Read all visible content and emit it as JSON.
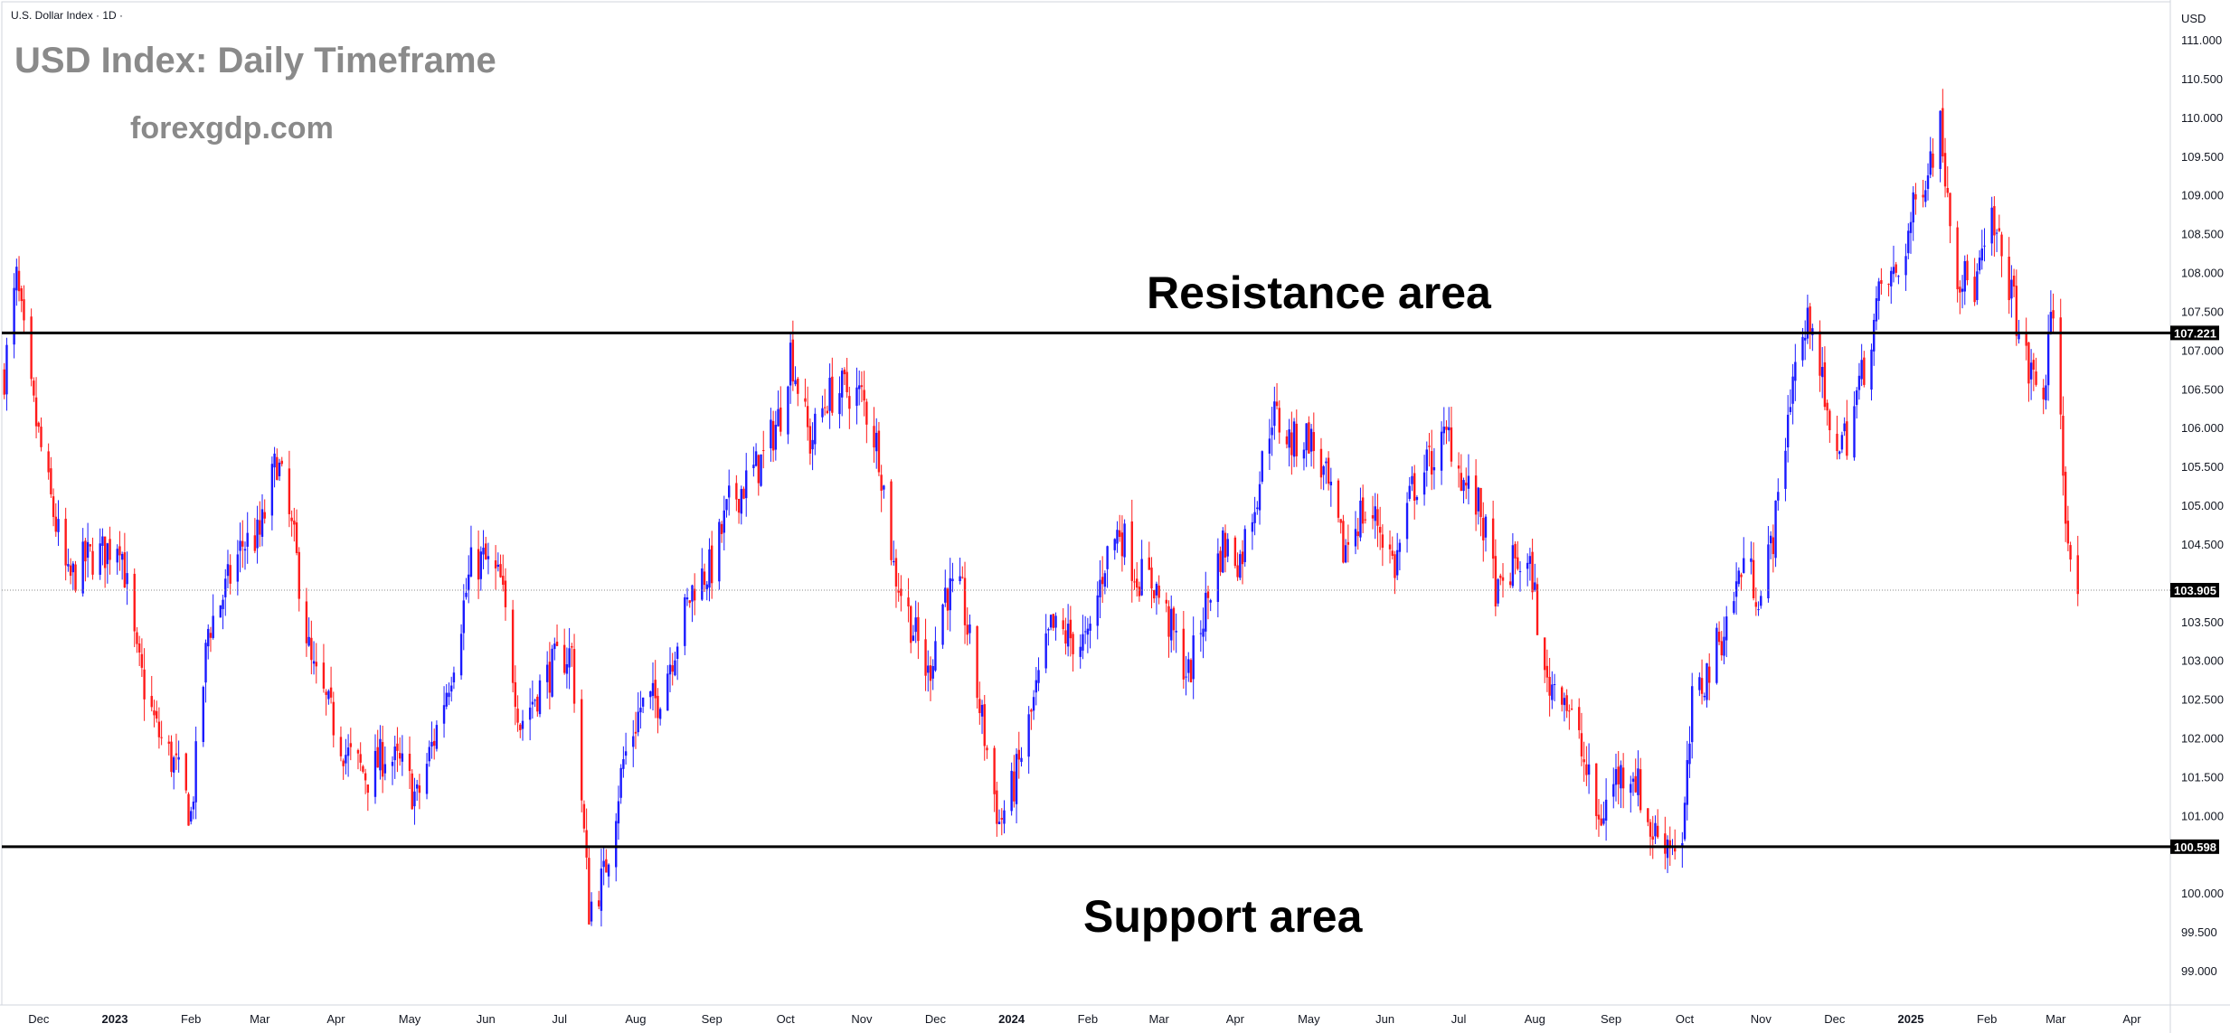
{
  "header": {
    "symbol_label": "U.S. Dollar Index · 1D ·",
    "watermark_title": "USD Index: Daily Timeframe",
    "watermark_site": "forexgdp.com"
  },
  "colors": {
    "up_candle": "#1a1aff",
    "down_candle": "#ff1a1a",
    "level_line": "#000000",
    "price_tag_bg": "#000000",
    "last_price_line": "#888888"
  },
  "chart_data": {
    "type": "candlestick",
    "title": "USD Index: Daily Timeframe",
    "instrument": "U.S. Dollar Index",
    "timeframe": "1D",
    "y_unit": "USD",
    "ylim": [
      98.6,
      111.5
    ],
    "y_ticks": [
      "111.000",
      "110.500",
      "110.000",
      "109.500",
      "109.000",
      "108.500",
      "108.000",
      "107.500",
      "107.000",
      "106.500",
      "106.000",
      "105.500",
      "105.000",
      "104.500",
      "104.000",
      "103.500",
      "103.000",
      "102.500",
      "102.000",
      "101.500",
      "101.000",
      "100.500",
      "100.000",
      "99.500",
      "99.000"
    ],
    "x_ticks": [
      {
        "label": "Dec",
        "date": "2022-12-01",
        "strong": false
      },
      {
        "label": "2023",
        "date": "2023-01-01",
        "strong": true
      },
      {
        "label": "Feb",
        "date": "2023-02-01",
        "strong": false
      },
      {
        "label": "Mar",
        "date": "2023-03-01",
        "strong": false
      },
      {
        "label": "Apr",
        "date": "2023-04-01",
        "strong": false
      },
      {
        "label": "May",
        "date": "2023-05-01",
        "strong": false
      },
      {
        "label": "Jun",
        "date": "2023-06-01",
        "strong": false
      },
      {
        "label": "Jul",
        "date": "2023-07-01",
        "strong": false
      },
      {
        "label": "Aug",
        "date": "2023-08-01",
        "strong": false
      },
      {
        "label": "Sep",
        "date": "2023-09-01",
        "strong": false
      },
      {
        "label": "Oct",
        "date": "2023-10-01",
        "strong": false
      },
      {
        "label": "Nov",
        "date": "2023-11-01",
        "strong": false
      },
      {
        "label": "Dec",
        "date": "2023-12-01",
        "strong": false
      },
      {
        "label": "2024",
        "date": "2024-01-01",
        "strong": true
      },
      {
        "label": "Feb",
        "date": "2024-02-01",
        "strong": false
      },
      {
        "label": "Mar",
        "date": "2024-03-01",
        "strong": false
      },
      {
        "label": "Apr",
        "date": "2024-04-01",
        "strong": false
      },
      {
        "label": "May",
        "date": "2024-05-01",
        "strong": false
      },
      {
        "label": "Jun",
        "date": "2024-06-01",
        "strong": false
      },
      {
        "label": "Jul",
        "date": "2024-07-01",
        "strong": false
      },
      {
        "label": "Aug",
        "date": "2024-08-01",
        "strong": false
      },
      {
        "label": "Sep",
        "date": "2024-09-01",
        "strong": false
      },
      {
        "label": "Oct",
        "date": "2024-10-01",
        "strong": false
      },
      {
        "label": "Nov",
        "date": "2024-11-01",
        "strong": false
      },
      {
        "label": "Dec",
        "date": "2024-12-01",
        "strong": false
      },
      {
        "label": "2025",
        "date": "2025-01-01",
        "strong": true
      },
      {
        "label": "Feb",
        "date": "2025-02-01",
        "strong": false
      },
      {
        "label": "Mar",
        "date": "2025-03-01",
        "strong": false
      },
      {
        "label": "Apr",
        "date": "2025-04-01",
        "strong": false
      }
    ],
    "levels": [
      {
        "name": "Resistance area",
        "value": 107.221,
        "tag": "107.221"
      },
      {
        "name": "Support area",
        "value": 100.598,
        "tag": "100.598"
      }
    ],
    "last_price": {
      "value": 103.905,
      "tag": "103.905"
    },
    "close_path": [
      [
        "2022-11-17",
        106.7
      ],
      [
        "2022-11-22",
        107.9
      ],
      [
        "2022-11-28",
        106.4
      ],
      [
        "2022-12-05",
        105.2
      ],
      [
        "2022-12-13",
        104.0
      ],
      [
        "2022-12-20",
        104.3
      ],
      [
        "2022-12-28",
        104.4
      ],
      [
        "2023-01-03",
        104.6
      ],
      [
        "2023-01-10",
        103.0
      ],
      [
        "2023-01-18",
        102.1
      ],
      [
        "2023-01-26",
        101.6
      ],
      [
        "2023-02-01",
        101.0
      ],
      [
        "2023-02-08",
        103.4
      ],
      [
        "2023-02-15",
        103.9
      ],
      [
        "2023-02-22",
        104.5
      ],
      [
        "2023-03-01",
        104.6
      ],
      [
        "2023-03-08",
        105.6
      ],
      [
        "2023-03-15",
        104.5
      ],
      [
        "2023-03-22",
        102.9
      ],
      [
        "2023-03-31",
        102.2
      ],
      [
        "2023-04-05",
        101.8
      ],
      [
        "2023-04-14",
        101.5
      ],
      [
        "2023-04-21",
        101.8
      ],
      [
        "2023-04-28",
        101.6
      ],
      [
        "2023-05-04",
        101.2
      ],
      [
        "2023-05-11",
        102.0
      ],
      [
        "2023-05-18",
        102.9
      ],
      [
        "2023-05-26",
        104.2
      ],
      [
        "2023-05-31",
        104.3
      ],
      [
        "2023-06-07",
        104.0
      ],
      [
        "2023-06-15",
        102.2
      ],
      [
        "2023-06-22",
        102.6
      ],
      [
        "2023-06-30",
        103.0
      ],
      [
        "2023-07-06",
        103.1
      ],
      [
        "2023-07-13",
        99.8
      ],
      [
        "2023-07-19",
        100.2
      ],
      [
        "2023-07-27",
        101.7
      ],
      [
        "2023-08-03",
        102.4
      ],
      [
        "2023-08-10",
        102.5
      ],
      [
        "2023-08-18",
        103.3
      ],
      [
        "2023-08-25",
        104.0
      ],
      [
        "2023-09-01",
        104.2
      ],
      [
        "2023-09-08",
        105.0
      ],
      [
        "2023-09-15",
        105.3
      ],
      [
        "2023-09-22",
        105.6
      ],
      [
        "2023-09-29",
        106.2
      ],
      [
        "2023-10-03",
        107.0
      ],
      [
        "2023-10-11",
        105.8
      ],
      [
        "2023-10-18",
        106.4
      ],
      [
        "2023-10-25",
        106.5
      ],
      [
        "2023-11-01",
        106.4
      ],
      [
        "2023-11-08",
        105.7
      ],
      [
        "2023-11-14",
        104.2
      ],
      [
        "2023-11-21",
        103.5
      ],
      [
        "2023-11-28",
        102.8
      ],
      [
        "2023-12-05",
        103.9
      ],
      [
        "2023-12-12",
        103.8
      ],
      [
        "2023-12-19",
        102.4
      ],
      [
        "2023-12-27",
        100.9
      ],
      [
        "2024-01-02",
        101.4
      ],
      [
        "2024-01-09",
        102.3
      ],
      [
        "2024-01-17",
        103.4
      ],
      [
        "2024-01-24",
        103.3
      ],
      [
        "2024-02-01",
        103.2
      ],
      [
        "2024-02-08",
        104.3
      ],
      [
        "2024-02-14",
        104.7
      ],
      [
        "2024-02-21",
        104.1
      ],
      [
        "2024-02-28",
        104.0
      ],
      [
        "2024-03-06",
        103.4
      ],
      [
        "2024-03-13",
        102.8
      ],
      [
        "2024-03-20",
        103.7
      ],
      [
        "2024-03-27",
        104.5
      ],
      [
        "2024-04-03",
        104.3
      ],
      [
        "2024-04-10",
        105.2
      ],
      [
        "2024-04-16",
        106.2
      ],
      [
        "2024-04-24",
        105.8
      ],
      [
        "2024-05-01",
        105.9
      ],
      [
        "2024-05-08",
        105.3
      ],
      [
        "2024-05-15",
        104.4
      ],
      [
        "2024-05-22",
        104.9
      ],
      [
        "2024-05-29",
        104.8
      ],
      [
        "2024-06-05",
        104.2
      ],
      [
        "2024-06-12",
        105.2
      ],
      [
        "2024-06-20",
        105.6
      ],
      [
        "2024-06-27",
        105.9
      ],
      [
        "2024-07-03",
        105.3
      ],
      [
        "2024-07-10",
        104.9
      ],
      [
        "2024-07-17",
        103.8
      ],
      [
        "2024-07-24",
        104.3
      ],
      [
        "2024-07-31",
        104.1
      ],
      [
        "2024-08-05",
        102.7
      ],
      [
        "2024-08-12",
        102.7
      ],
      [
        "2024-08-20",
        101.8
      ],
      [
        "2024-08-27",
        100.9
      ],
      [
        "2024-09-03",
        101.5
      ],
      [
        "2024-09-10",
        101.6
      ],
      [
        "2024-09-17",
        100.8
      ],
      [
        "2024-09-24",
        100.7
      ],
      [
        "2024-09-30",
        100.6
      ],
      [
        "2024-10-04",
        102.4
      ],
      [
        "2024-10-11",
        102.9
      ],
      [
        "2024-10-18",
        103.5
      ],
      [
        "2024-10-25",
        104.3
      ],
      [
        "2024-11-01",
        103.8
      ],
      [
        "2024-11-07",
        104.8
      ],
      [
        "2024-11-14",
        106.7
      ],
      [
        "2024-11-22",
        107.5
      ],
      [
        "2024-11-29",
        105.8
      ],
      [
        "2024-12-06",
        105.9
      ],
      [
        "2024-12-13",
        106.8
      ],
      [
        "2024-12-20",
        107.8
      ],
      [
        "2024-12-27",
        108.0
      ],
      [
        "2025-01-03",
        108.9
      ],
      [
        "2025-01-10",
        109.6
      ],
      [
        "2025-01-13",
        109.9
      ],
      [
        "2025-01-20",
        108.0
      ],
      [
        "2025-01-27",
        107.8
      ],
      [
        "2025-02-03",
        108.6
      ],
      [
        "2025-02-10",
        107.9
      ],
      [
        "2025-02-17",
        106.8
      ],
      [
        "2025-02-24",
        106.4
      ],
      [
        "2025-02-28",
        107.6
      ],
      [
        "2025-03-04",
        105.5
      ],
      [
        "2025-03-07",
        104.1
      ],
      [
        "2025-03-10",
        103.9
      ]
    ]
  }
}
